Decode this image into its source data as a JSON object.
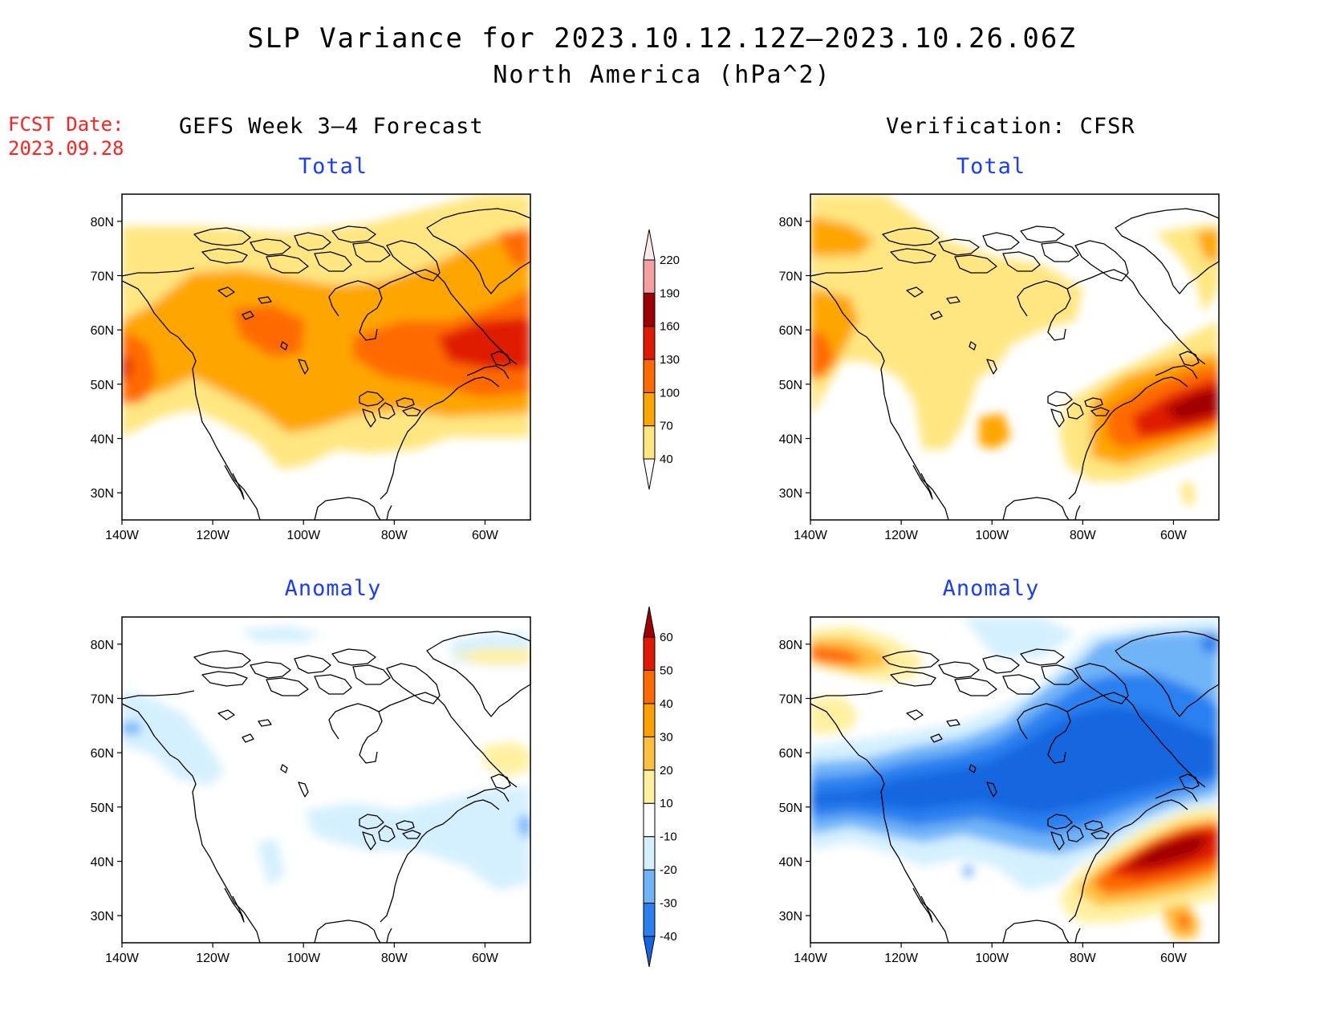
{
  "header": {
    "title": "SLP Variance for 2023.10.12.12Z–2023.10.26.06Z",
    "subtitle": "North America (hPa^2)",
    "fcst_label": "FCST Date:",
    "fcst_date": "2023.09.28"
  },
  "columns": {
    "left": "GEFS Week 3–4 Forecast",
    "right": "Verification: CFSR"
  },
  "panels": {
    "total": "Total",
    "anomaly": "Anomaly"
  },
  "axes": {
    "lat_ticks": [
      "80N",
      "70N",
      "60N",
      "50N",
      "40N",
      "30N"
    ],
    "lon_ticks": [
      "140W",
      "120W",
      "100W",
      "80W",
      "60W"
    ]
  },
  "colorbar_total": {
    "labels": [
      "40",
      "70",
      "100",
      "130",
      "160",
      "190",
      "220"
    ],
    "colors": [
      "#ffffff",
      "#ffe680",
      "#ffa500",
      "#ff6a00",
      "#e01a00",
      "#a00000",
      "#f4a0a0",
      "#ffe8e8"
    ]
  },
  "colorbar_anomaly": {
    "labels": [
      "-40",
      "-30",
      "-20",
      "-10",
      "10",
      "20",
      "30",
      "40",
      "50",
      "60"
    ],
    "colors": [
      "#1466e0",
      "#2a80f0",
      "#70b4f8",
      "#d4f0ff",
      "#ffffff",
      "#fff0a0",
      "#ffc040",
      "#ffa000",
      "#ff6a00",
      "#e01a00",
      "#a00000"
    ]
  }
}
